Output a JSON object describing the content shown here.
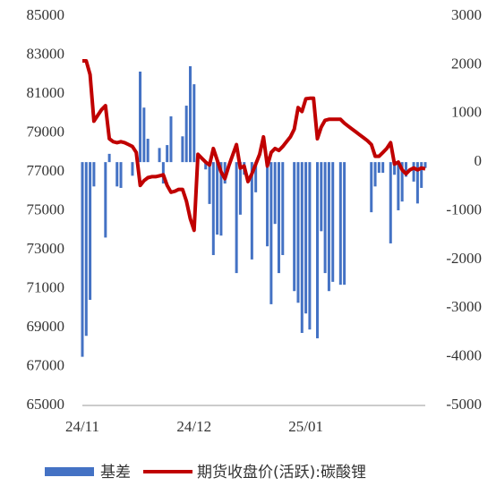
{
  "chart_data": {
    "type": "bar-line",
    "categories": [
      "24/11",
      null,
      null,
      null,
      null,
      null,
      null,
      null,
      null,
      null,
      null,
      null,
      null,
      null,
      null,
      null,
      null,
      null,
      null,
      null,
      null,
      null,
      null,
      null,
      null,
      null,
      null,
      null,
      null,
      "24/12",
      null,
      null,
      null,
      null,
      null,
      null,
      null,
      null,
      null,
      null,
      null,
      null,
      null,
      null,
      null,
      null,
      null,
      null,
      null,
      null,
      null,
      null,
      null,
      null,
      null,
      null,
      null,
      null,
      "25/01",
      null,
      null,
      null,
      null,
      null,
      null,
      null,
      null,
      null,
      null,
      null,
      null,
      null,
      null,
      null,
      null,
      null,
      null,
      null,
      null,
      null,
      null,
      null,
      null,
      null,
      null,
      null,
      null,
      null,
      null,
      null
    ],
    "series": [
      {
        "name": "基差",
        "type": "bar",
        "axis": "y2",
        "color": "#4472c4",
        "values": [
          -4000,
          -3570,
          -2830,
          -500,
          null,
          null,
          -1550,
          170,
          null,
          -500,
          -530,
          null,
          null,
          -280,
          null,
          1860,
          1120,
          480,
          null,
          null,
          290,
          -440,
          350,
          940,
          null,
          null,
          530,
          1160,
          1970,
          1600,
          null,
          null,
          -150,
          -860,
          -1910,
          -1490,
          -1510,
          -440,
          null,
          null,
          -2280,
          -1080,
          -260,
          null,
          -2000,
          -620,
          null,
          null,
          -1730,
          -2920,
          -1270,
          -2280,
          -1910,
          null,
          null,
          -2650,
          -2890,
          -3510,
          -3110,
          -3440,
          null,
          -3620,
          -1420,
          -2280,
          -2650,
          -2460,
          null,
          -2520,
          -2520,
          null,
          null,
          null,
          null,
          null,
          null,
          -1030,
          -500,
          -220,
          -220,
          null,
          -1670,
          -260,
          -990,
          -810,
          -300,
          null,
          -400,
          -850,
          -530,
          -120
        ]
      },
      {
        "name": "期货收盘价(活跃):碳酸锂",
        "type": "line",
        "color": "#c00000",
        "values": [
          82700,
          82700,
          82000,
          79600,
          79900,
          80200,
          80400,
          78700,
          78550,
          78500,
          78550,
          78500,
          78400,
          78300,
          78000,
          76300,
          76550,
          76700,
          76750,
          76750,
          76800,
          76850,
          76300,
          75950,
          76000,
          76100,
          76100,
          75500,
          74600,
          74000,
          77900,
          77700,
          77500,
          77350,
          78200,
          77600,
          77000,
          76650,
          77300,
          77850,
          78400,
          77200,
          77300,
          76500,
          76900,
          77400,
          77900,
          78800,
          77300,
          78000,
          78200,
          78100,
          78300,
          78550,
          78800,
          79200,
          80300,
          80100,
          80750,
          80780,
          80780,
          78700,
          79300,
          79650,
          79700,
          79700,
          79700,
          79700,
          79500,
          79350,
          79200,
          79050,
          78900,
          78750,
          78600,
          78400,
          77800,
          77800,
          78000,
          78200,
          78500,
          77400,
          77500,
          77100,
          76900,
          77100,
          77200,
          77100,
          77200,
          77150
        ]
      }
    ],
    "ylim": [
      65000,
      85000
    ],
    "yticks": [
      65000,
      67000,
      69000,
      71000,
      73000,
      75000,
      77000,
      79000,
      81000,
      83000,
      85000
    ],
    "y2lim": [
      -5000,
      3000
    ],
    "y2ticks": [
      -5000,
      -4000,
      -3000,
      -2000,
      -1000,
      0,
      1000,
      2000,
      3000
    ],
    "grid": false,
    "legend": "bottom"
  }
}
